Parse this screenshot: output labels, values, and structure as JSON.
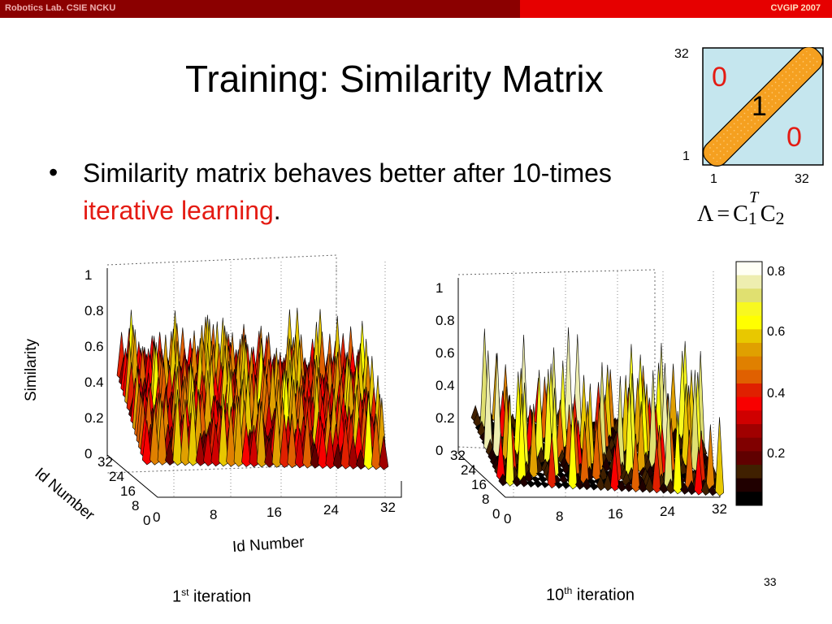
{
  "header": {
    "lab": "Robotics Lab. CSIE NCKU",
    "conference": "CVGIP 2007"
  },
  "title": "Training: Similarity Matrix",
  "bullet": {
    "text_before": "Similarity matrix behaves better after 10-times ",
    "highlight": "iterative learning",
    "text_after": "."
  },
  "matrix_diagram": {
    "y_top": "32",
    "y_bottom": "1",
    "x_left": "1",
    "x_right": "32",
    "upper_value": "0",
    "diag_value": "1",
    "lower_value": "0"
  },
  "formula": {
    "lambda": "Λ",
    "eq": "=",
    "c1": "C",
    "sub1": "1",
    "sup": "T",
    "c2": "C",
    "sub2": "2"
  },
  "plot_left": {
    "z_ticks": [
      "1",
      "0.8",
      "0.6",
      "0.4",
      "0.2",
      "0"
    ],
    "y_ticks": [
      "32",
      "24",
      "16",
      "8",
      "0"
    ],
    "x_ticks": [
      "0",
      "8",
      "16",
      "24",
      "32"
    ],
    "z_label": "Similarity",
    "y_label": "Id Number",
    "x_label": "Id Number"
  },
  "plot_right": {
    "z_ticks": [
      "1",
      "0.8",
      "0.6",
      "0.4",
      "0.2",
      "0"
    ],
    "y_ticks": [
      "32",
      "24",
      "16",
      "8",
      "0"
    ],
    "x_ticks": [
      "0",
      "8",
      "16",
      "24",
      "32"
    ]
  },
  "colorbar": {
    "ticks": [
      "0.8",
      "0.6",
      "0.4",
      "0.2"
    ],
    "colors": [
      "#fffff5",
      "#eeeeb0",
      "#e0e070",
      "#f8f820",
      "#ffff00",
      "#e8c800",
      "#e0a000",
      "#e08000",
      "#e06000",
      "#e02000",
      "#f80000",
      "#d00000",
      "#a00000",
      "#800000",
      "#600000",
      "#402000",
      "#200000",
      "#000000"
    ]
  },
  "captions": {
    "left": {
      "pre": "1",
      "sup": "st",
      "post": " iteration"
    },
    "right": {
      "pre": "10",
      "sup": "th",
      "post": " iteration"
    }
  },
  "page_number": "33"
}
